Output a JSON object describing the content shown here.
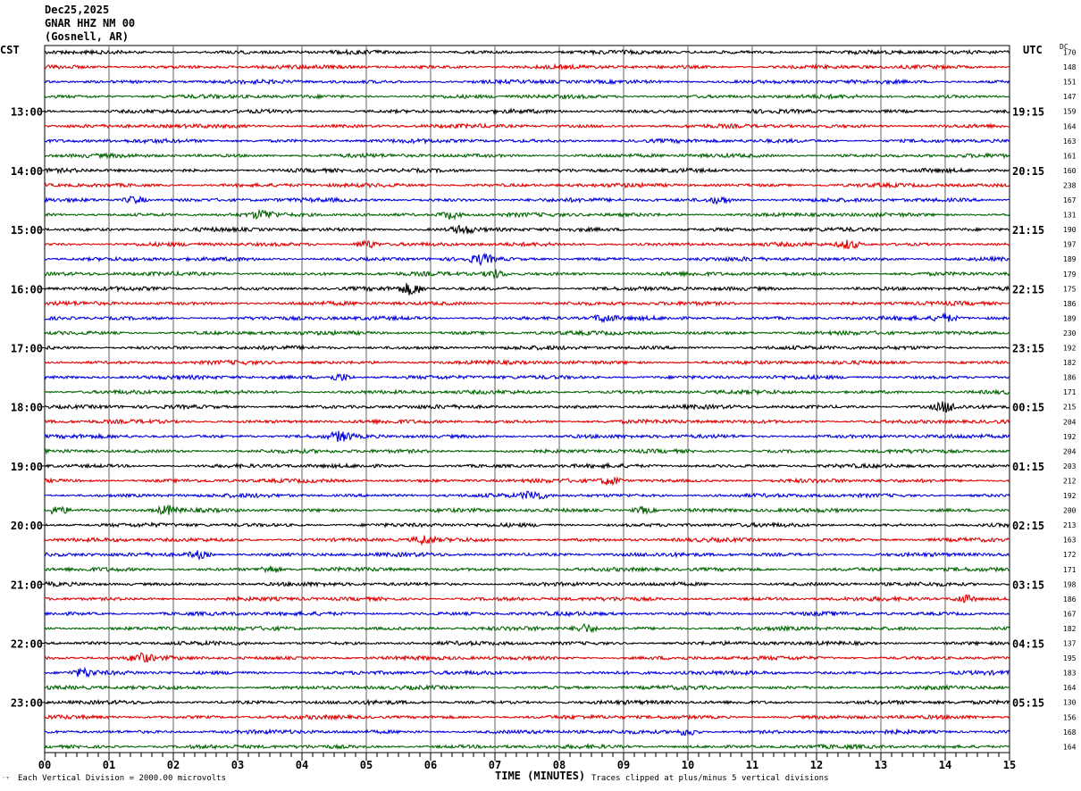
{
  "header": {
    "date": "Dec25,2025",
    "station": "GNAR HHZ NM 00",
    "location": "(Gosnell, AR)"
  },
  "left_zone": "CST",
  "right_zone": "UTC",
  "dc_label": "DC",
  "footer": {
    "scale": "Each Vertical Division = 2000.00 microvolts",
    "clip": "Traces clipped at plus/minus 5 vertical divisions",
    "mark": "′ᵀ"
  },
  "colors": {
    "trace_cycle": [
      "#000000",
      "#e00000",
      "#0000dd",
      "#006400"
    ],
    "grid": "#000000"
  },
  "chart_data": {
    "type": "helicorder",
    "title": "Dec25,2025 GNAR HHZ NM 00 (Gosnell, AR)",
    "xlabel": "TIME (MINUTES)",
    "xlim": [
      0,
      15
    ],
    "x_ticks": [
      "00",
      "01",
      "02",
      "03",
      "04",
      "05",
      "06",
      "07",
      "08",
      "09",
      "10",
      "11",
      "12",
      "13",
      "14",
      "15"
    ],
    "left_time_labels": [
      "13:00",
      "14:00",
      "15:00",
      "16:00",
      "17:00",
      "18:00",
      "19:00",
      "20:00",
      "21:00",
      "22:00",
      "23:00"
    ],
    "right_time_labels": [
      "19:15",
      "20:15",
      "21:15",
      "22:15",
      "23:15",
      "00:15",
      "01:15",
      "02:15",
      "03:15",
      "04:15",
      "05:15"
    ],
    "dc_offsets": [
      170,
      148,
      151,
      147,
      159,
      164,
      163,
      161,
      160,
      238,
      167,
      131,
      190,
      197,
      189,
      179,
      175,
      186,
      189,
      230,
      192,
      182,
      186,
      171,
      215,
      204,
      192,
      204,
      203,
      212,
      192,
      200,
      213,
      163,
      172,
      171,
      198,
      186,
      167,
      182,
      137,
      195,
      183,
      164,
      130,
      156,
      168,
      164
    ],
    "traces_per_hour": 4,
    "minutes_per_trace": 15,
    "events": [
      {
        "trace": 10,
        "minute": 1.4,
        "amp": 1.4
      },
      {
        "trace": 10,
        "minute": 10.5,
        "amp": 1.2
      },
      {
        "trace": 11,
        "minute": 3.4,
        "amp": 1.3
      },
      {
        "trace": 11,
        "minute": 6.3,
        "amp": 1.5
      },
      {
        "trace": 12,
        "minute": 6.5,
        "amp": 1.3
      },
      {
        "trace": 13,
        "minute": 5.0,
        "amp": 1.5
      },
      {
        "trace": 13,
        "minute": 12.5,
        "amp": 1.6
      },
      {
        "trace": 14,
        "minute": 6.8,
        "amp": 1.5
      },
      {
        "trace": 15,
        "minute": 7.0,
        "amp": 1.4
      },
      {
        "trace": 16,
        "minute": 5.7,
        "amp": 2.0
      },
      {
        "trace": 18,
        "minute": 8.7,
        "amp": 1.2
      },
      {
        "trace": 18,
        "minute": 14.0,
        "amp": 1.3
      },
      {
        "trace": 22,
        "minute": 4.6,
        "amp": 1.3
      },
      {
        "trace": 24,
        "minute": 14.0,
        "amp": 1.6
      },
      {
        "trace": 26,
        "minute": 4.6,
        "amp": 1.5
      },
      {
        "trace": 29,
        "minute": 8.8,
        "amp": 1.5
      },
      {
        "trace": 30,
        "minute": 7.6,
        "amp": 1.6
      },
      {
        "trace": 31,
        "minute": 0.2,
        "amp": 1.3
      },
      {
        "trace": 31,
        "minute": 1.9,
        "amp": 1.4
      },
      {
        "trace": 31,
        "minute": 9.3,
        "amp": 1.2
      },
      {
        "trace": 33,
        "minute": 5.9,
        "amp": 1.4
      },
      {
        "trace": 34,
        "minute": 2.4,
        "amp": 1.3
      },
      {
        "trace": 35,
        "minute": 3.5,
        "amp": 1.2
      },
      {
        "trace": 37,
        "minute": 14.3,
        "amp": 1.3
      },
      {
        "trace": 39,
        "minute": 8.4,
        "amp": 1.5
      },
      {
        "trace": 41,
        "minute": 1.5,
        "amp": 1.4
      },
      {
        "trace": 42,
        "minute": 0.6,
        "amp": 1.3
      },
      {
        "trace": 46,
        "minute": 10.0,
        "amp": 1.3
      }
    ]
  }
}
